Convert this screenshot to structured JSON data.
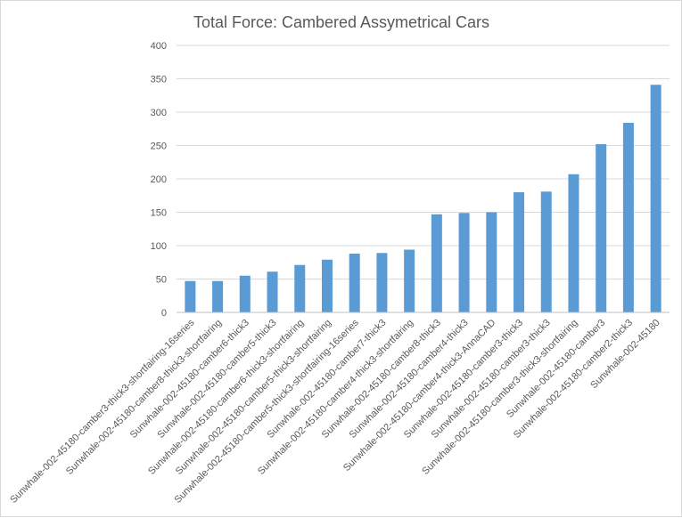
{
  "chart_data": {
    "type": "bar",
    "title": "Total Force: Cambered Assymetrical Cars",
    "xlabel": "",
    "ylabel": "",
    "ylim": [
      0,
      400
    ],
    "yticks": [
      0,
      50,
      100,
      150,
      200,
      250,
      300,
      350,
      400
    ],
    "grid": true,
    "color": "#5b9bd5",
    "categories": [
      "Sunwhale-002-45180-camber3-thick3-shortfairing-16series",
      "Sunwhale-002-45180-camber8-thick3-shortfairing",
      "Sunwhale-002-45180-camber6-thick3",
      "Sunwhale-002-45180-camber5-thick3",
      "Sunwhale-002-45180-camber6-thick3-shortfairing",
      "Sunwhale-002-45180-camber5-thick3-shortfairing",
      "Sunwhale-002-45180-camber5-thick3-shortfairing-16series",
      "Sunwhale-002-45180-camber7-thick3",
      "Sunwhale-002-45180-camber4-thick3-shortfairing",
      "Sunwhale-002-45180-camber8-thick3",
      "Sunwhale-002-45180-camber4-thick3",
      "Sunwhale-002-45180-camber4-thick3-AnnaCAD",
      "Sunwhale-002-45180-camber3-thick3",
      "Sunwhale-002-45180-camber3-thick3",
      "Sunwhale-002-45180-camber3-thick3-shortfairing",
      "Sunwhale-002-45180-camber3",
      "Sunwhale-002-45180-camber2-thick3",
      "Sunwhale-002-45180"
    ],
    "values": [
      47,
      47,
      55,
      61,
      71,
      79,
      88,
      89,
      94,
      147,
      149,
      150,
      180,
      181,
      207,
      252,
      284,
      341
    ]
  }
}
